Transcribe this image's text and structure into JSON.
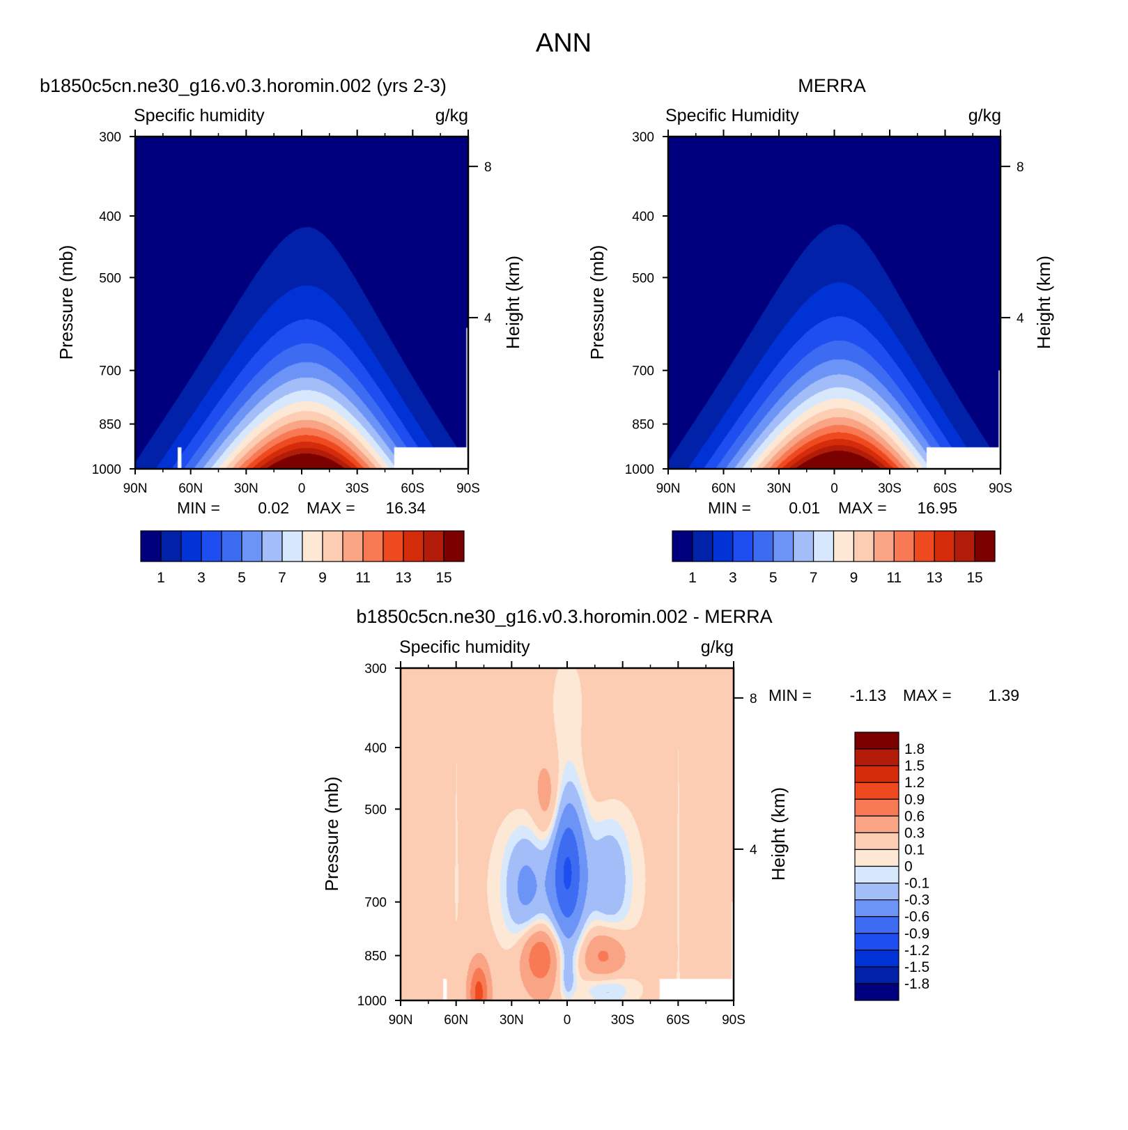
{
  "title": "ANN",
  "colors": {
    "abs_scale": [
      "#00007e",
      "#0021a8",
      "#0032d6",
      "#1e4ef0",
      "#3d6cf3",
      "#6c94f7",
      "#a3bdf9",
      "#d7e8fc",
      "#fde8d6",
      "#fccdb3",
      "#f9a485",
      "#f77a55",
      "#ef4a1f",
      "#d42b0b",
      "#b21c08",
      "#7b0000"
    ],
    "diff_scale": [
      "#00007e",
      "#0021a8",
      "#0032d6",
      "#1e4ef0",
      "#3d6cf3",
      "#6c94f7",
      "#a3bdf9",
      "#d7e8fc",
      "#fde8d6",
      "#fccdb3",
      "#f9a485",
      "#f77a55",
      "#ef4a1f",
      "#d42b0b",
      "#b21c08",
      "#7b0000"
    ]
  },
  "chart_data": [
    {
      "type": "heatmap",
      "name": "model",
      "run_title": "b1850c5cn.ne30_g16.v0.3.horomin.002 (yrs 2-3)",
      "field_label": "Specific humidity",
      "units": "g/kg",
      "ylabel": "Pressure (mb)",
      "y2label": "Height (km)",
      "x_ticklabels": [
        "90N",
        "60N",
        "30N",
        "0",
        "30S",
        "60S",
        "90S"
      ],
      "y_ticklabels": [
        "300",
        "400",
        "500",
        "700",
        "850",
        "1000"
      ],
      "y2_ticklabels": [
        "8",
        "4"
      ],
      "ylim": [
        1000,
        300
      ],
      "stats": {
        "min_label": "MIN =",
        "min": "0.02",
        "max_label": "MAX =",
        "max": "16.34"
      },
      "levels": [
        1,
        2,
        3,
        4,
        5,
        6,
        7,
        8,
        9,
        10,
        11,
        12,
        13,
        14,
        15
      ],
      "colorbar_labels": [
        "1",
        "3",
        "5",
        "7",
        "9",
        "11",
        "13",
        "15"
      ],
      "peak": 16.34,
      "center_lat": -3
    },
    {
      "type": "heatmap",
      "name": "obs",
      "run_title": "MERRA",
      "field_label": "Specific Humidity",
      "units": "g/kg",
      "ylabel": "Pressure (mb)",
      "y2label": "Height (km)",
      "x_ticklabels": [
        "90N",
        "60N",
        "30N",
        "0",
        "30S",
        "60S",
        "90S"
      ],
      "y_ticklabels": [
        "300",
        "400",
        "500",
        "700",
        "850",
        "1000"
      ],
      "y2_ticklabels": [
        "8",
        "4"
      ],
      "ylim": [
        1000,
        300
      ],
      "stats": {
        "min_label": "MIN =",
        "min": "0.01",
        "max_label": "MAX =",
        "max": "16.95"
      },
      "levels": [
        1,
        2,
        3,
        4,
        5,
        6,
        7,
        8,
        9,
        10,
        11,
        12,
        13,
        14,
        15
      ],
      "colorbar_labels": [
        "1",
        "3",
        "5",
        "7",
        "9",
        "11",
        "13",
        "15"
      ],
      "peak": 16.95,
      "center_lat": -3
    },
    {
      "type": "heatmap",
      "name": "difference",
      "run_title": "b1850c5cn.ne30_g16.v0.3.horomin.002 - MERRA",
      "field_label": "Specific humidity",
      "units": "g/kg",
      "ylabel": "Pressure (mb)",
      "y2label": "Height (km)",
      "x_ticklabels": [
        "90N",
        "60N",
        "30N",
        "0",
        "30S",
        "60S",
        "90S"
      ],
      "y_ticklabels": [
        "300",
        "400",
        "500",
        "700",
        "850",
        "1000"
      ],
      "y2_ticklabels": [
        "8",
        "4"
      ],
      "ylim": [
        1000,
        300
      ],
      "stats": {
        "min_label": "MIN =",
        "min": "-1.13",
        "max_label": "MAX =",
        "max": "1.39"
      },
      "levels": [
        -1.8,
        -1.5,
        -1.2,
        -0.9,
        -0.6,
        -0.3,
        -0.1,
        0,
        0.1,
        0.3,
        0.6,
        0.9,
        1.2,
        1.5,
        1.8
      ],
      "colorbar_labels": [
        "1.8",
        "1.5",
        "1.2",
        "0.9",
        "0.6",
        "0.3",
        "0.1",
        "0",
        "-0.1",
        "-0.3",
        "-0.6",
        "-0.9",
        "-1.2",
        "-1.5",
        "-1.8"
      ]
    }
  ]
}
